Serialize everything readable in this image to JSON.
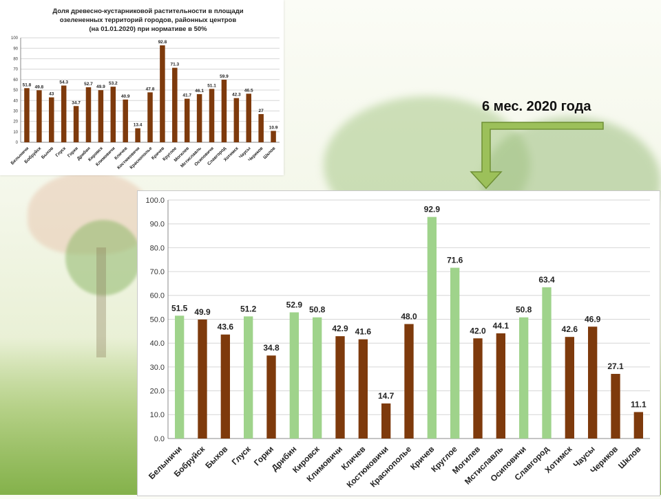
{
  "period_label": "6 мес. 2020 года",
  "colors": {
    "brown": "#7e3a0c",
    "green": "#9fd38b",
    "arrow_fill": "#9cc05a",
    "arrow_stroke": "#6e8f35",
    "grid": "#d6d6d6"
  },
  "chart_data": [
    {
      "type": "bar",
      "title": "Доля древесно-кустарниковой растительности в площади\nозелененных территорий городов, районных центров\n(на 01.01.2020) при нормативе в 50%",
      "categories": [
        "Белыничи",
        "Бобруйск",
        "Быхов",
        "Глуск",
        "Горки",
        "Дрибин",
        "Кировск",
        "Климовичи",
        "Кличев",
        "Костюковичи",
        "Краснополье",
        "Кричев",
        "Круглое",
        "Могилев",
        "Мстиславль",
        "Осиповичи",
        "Славгород",
        "Хотимск",
        "Чаусы",
        "Чериков",
        "Шклов"
      ],
      "values": [
        51.8,
        49.8,
        43,
        54.3,
        34.7,
        52.7,
        49.9,
        53.2,
        40.9,
        13.4,
        47.8,
        92.8,
        71.3,
        41.7,
        46.1,
        51.1,
        59.9,
        42.3,
        46.5,
        27,
        10.9
      ],
      "value_labels": [
        "51.8",
        "49.8",
        "43",
        "54.3",
        "34.7",
        "52.7",
        "49.9",
        "53.2",
        "40.9",
        "13.4",
        "47.8",
        "92.8",
        "71.3",
        "41.7",
        "46.1",
        "51.1",
        "59.9",
        "42.3",
        "46.5",
        "27",
        "10.9"
      ],
      "ylim": [
        0,
        100
      ],
      "yticks": [
        "0",
        "10",
        "20",
        "30",
        "40",
        "50",
        "60",
        "70",
        "80",
        "90",
        "100"
      ],
      "color": "#7e3a0c",
      "grid": true
    },
    {
      "type": "bar",
      "categories": [
        "Белыничи",
        "Бобруйск",
        "Быхов",
        "Глуск",
        "Горки",
        "Дрибин",
        "Кировск",
        "Климовичи",
        "Кличев",
        "Костюковичи",
        "Краснополье",
        "Кричев",
        "Круглое",
        "Могилев",
        "Мстиславль",
        "Осиповичи",
        "Славгород",
        "Хотимск",
        "Чаусы",
        "Чериков",
        "Шклов"
      ],
      "values": [
        51.5,
        49.9,
        43.6,
        51.2,
        34.8,
        52.9,
        50.8,
        42.9,
        41.6,
        14.7,
        48.0,
        92.9,
        71.6,
        42.0,
        44.1,
        50.8,
        63.4,
        42.6,
        46.9,
        27.1,
        11.1
      ],
      "value_labels": [
        "51.5",
        "49.9",
        "43.6",
        "51.2",
        "34.8",
        "52.9",
        "50.8",
        "42.9",
        "41.6",
        "14.7",
        "48.0",
        "92.9",
        "71.6",
        "42.0",
        "44.1",
        "50.8",
        "63.4",
        "42.6",
        "46.9",
        "27.1",
        "11.1"
      ],
      "bar_colors": [
        "green",
        "brown",
        "brown",
        "green",
        "brown",
        "green",
        "green",
        "brown",
        "brown",
        "brown",
        "brown",
        "green",
        "green",
        "brown",
        "brown",
        "green",
        "green",
        "brown",
        "brown",
        "brown",
        "brown"
      ],
      "ylim": [
        0,
        100
      ],
      "yticks": [
        "0.0",
        "10.0",
        "20.0",
        "30.0",
        "40.0",
        "50.0",
        "60.0",
        "70.0",
        "80.0",
        "90.0",
        "100.0"
      ],
      "grid": true
    }
  ]
}
